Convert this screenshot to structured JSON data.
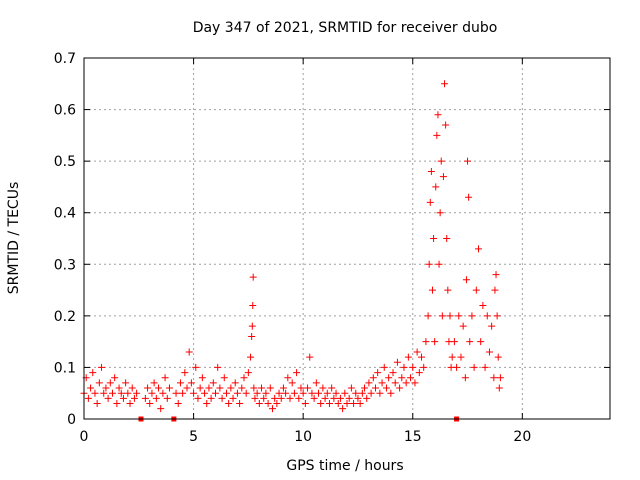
{
  "chart_data": {
    "type": "scatter",
    "title": "Day 347 of 2021, SRMTID for receiver dubo",
    "xlabel": "GPS time / hours",
    "ylabel": "SRMTID / TECUs",
    "xlim": [
      0,
      24
    ],
    "ylim": [
      0,
      0.7
    ],
    "x_ticks": [
      0,
      5,
      10,
      15,
      20
    ],
    "x_tick_labels": [
      "0",
      "5",
      "10",
      "15",
      "20"
    ],
    "y_ticks": [
      0,
      0.1,
      0.2,
      0.3,
      0.4,
      0.5,
      0.6,
      0.7
    ],
    "y_tick_labels": [
      "0",
      "0.1",
      "0.2",
      "0.3",
      "0.4",
      "0.5",
      "0.6",
      "0.7"
    ],
    "grid": true,
    "marker": "+",
    "color": "#ff0000",
    "gap_markers_x": [
      2.6,
      4.1,
      17.0
    ],
    "series": [
      {
        "name": "SRMTID",
        "points": [
          [
            0.0,
            0.05
          ],
          [
            0.1,
            0.08
          ],
          [
            0.2,
            0.04
          ],
          [
            0.3,
            0.06
          ],
          [
            0.4,
            0.09
          ],
          [
            0.5,
            0.05
          ],
          [
            0.6,
            0.03
          ],
          [
            0.7,
            0.07
          ],
          [
            0.8,
            0.1
          ],
          [
            0.9,
            0.05
          ],
          [
            1.0,
            0.06
          ],
          [
            1.1,
            0.04
          ],
          [
            1.2,
            0.07
          ],
          [
            1.3,
            0.05
          ],
          [
            1.4,
            0.08
          ],
          [
            1.5,
            0.03
          ],
          [
            1.6,
            0.06
          ],
          [
            1.7,
            0.05
          ],
          [
            1.8,
            0.04
          ],
          [
            1.9,
            0.07
          ],
          [
            2.0,
            0.05
          ],
          [
            2.1,
            0.03
          ],
          [
            2.2,
            0.06
          ],
          [
            2.3,
            0.04
          ],
          [
            2.4,
            0.05
          ],
          [
            2.8,
            0.04
          ],
          [
            2.9,
            0.06
          ],
          [
            3.0,
            0.03
          ],
          [
            3.1,
            0.05
          ],
          [
            3.2,
            0.07
          ],
          [
            3.3,
            0.04
          ],
          [
            3.4,
            0.06
          ],
          [
            3.5,
            0.02
          ],
          [
            3.6,
            0.05
          ],
          [
            3.7,
            0.08
          ],
          [
            3.8,
            0.04
          ],
          [
            3.9,
            0.06
          ],
          [
            4.2,
            0.05
          ],
          [
            4.3,
            0.03
          ],
          [
            4.4,
            0.07
          ],
          [
            4.5,
            0.05
          ],
          [
            4.6,
            0.09
          ],
          [
            4.7,
            0.06
          ],
          [
            4.8,
            0.13
          ],
          [
            4.9,
            0.07
          ],
          [
            5.0,
            0.05
          ],
          [
            5.1,
            0.1
          ],
          [
            5.2,
            0.04
          ],
          [
            5.3,
            0.06
          ],
          [
            5.4,
            0.08
          ],
          [
            5.5,
            0.05
          ],
          [
            5.6,
            0.03
          ],
          [
            5.7,
            0.06
          ],
          [
            5.8,
            0.04
          ],
          [
            5.9,
            0.07
          ],
          [
            6.0,
            0.05
          ],
          [
            6.1,
            0.1
          ],
          [
            6.2,
            0.06
          ],
          [
            6.3,
            0.04
          ],
          [
            6.4,
            0.08
          ],
          [
            6.5,
            0.05
          ],
          [
            6.6,
            0.03
          ],
          [
            6.7,
            0.06
          ],
          [
            6.8,
            0.04
          ],
          [
            6.9,
            0.07
          ],
          [
            7.0,
            0.05
          ],
          [
            7.1,
            0.03
          ],
          [
            7.2,
            0.06
          ],
          [
            7.3,
            0.08
          ],
          [
            7.4,
            0.05
          ],
          [
            7.5,
            0.09
          ],
          [
            7.6,
            0.12
          ],
          [
            7.65,
            0.16
          ],
          [
            7.68,
            0.18
          ],
          [
            7.7,
            0.22
          ],
          [
            7.72,
            0.275
          ],
          [
            7.75,
            0.06
          ],
          [
            7.8,
            0.04
          ],
          [
            7.9,
            0.05
          ],
          [
            8.0,
            0.03
          ],
          [
            8.1,
            0.06
          ],
          [
            8.2,
            0.04
          ],
          [
            8.3,
            0.05
          ],
          [
            8.4,
            0.03
          ],
          [
            8.5,
            0.06
          ],
          [
            8.6,
            0.02
          ],
          [
            8.7,
            0.04
          ],
          [
            8.8,
            0.03
          ],
          [
            8.9,
            0.05
          ],
          [
            9.0,
            0.04
          ],
          [
            9.1,
            0.06
          ],
          [
            9.2,
            0.05
          ],
          [
            9.3,
            0.08
          ],
          [
            9.4,
            0.04
          ],
          [
            9.5,
            0.07
          ],
          [
            9.6,
            0.05
          ],
          [
            9.7,
            0.09
          ],
          [
            9.8,
            0.04
          ],
          [
            9.9,
            0.06
          ],
          [
            10.0,
            0.05
          ],
          [
            10.1,
            0.03
          ],
          [
            10.2,
            0.06
          ],
          [
            10.3,
            0.12
          ],
          [
            10.4,
            0.05
          ],
          [
            10.5,
            0.04
          ],
          [
            10.6,
            0.07
          ],
          [
            10.7,
            0.05
          ],
          [
            10.8,
            0.03
          ],
          [
            10.9,
            0.06
          ],
          [
            11.0,
            0.04
          ],
          [
            11.1,
            0.05
          ],
          [
            11.2,
            0.03
          ],
          [
            11.3,
            0.06
          ],
          [
            11.4,
            0.04
          ],
          [
            11.5,
            0.05
          ],
          [
            11.6,
            0.03
          ],
          [
            11.7,
            0.04
          ],
          [
            11.8,
            0.02
          ],
          [
            11.9,
            0.05
          ],
          [
            12.0,
            0.03
          ],
          [
            12.1,
            0.04
          ],
          [
            12.2,
            0.06
          ],
          [
            12.3,
            0.03
          ],
          [
            12.4,
            0.05
          ],
          [
            12.5,
            0.04
          ],
          [
            12.6,
            0.03
          ],
          [
            12.7,
            0.05
          ],
          [
            12.8,
            0.06
          ],
          [
            12.9,
            0.04
          ],
          [
            13.0,
            0.07
          ],
          [
            13.1,
            0.05
          ],
          [
            13.2,
            0.08
          ],
          [
            13.3,
            0.06
          ],
          [
            13.4,
            0.09
          ],
          [
            13.5,
            0.05
          ],
          [
            13.6,
            0.07
          ],
          [
            13.7,
            0.1
          ],
          [
            13.8,
            0.06
          ],
          [
            13.9,
            0.08
          ],
          [
            14.0,
            0.05
          ],
          [
            14.1,
            0.09
          ],
          [
            14.2,
            0.07
          ],
          [
            14.3,
            0.11
          ],
          [
            14.4,
            0.06
          ],
          [
            14.5,
            0.08
          ],
          [
            14.6,
            0.1
          ],
          [
            14.7,
            0.07
          ],
          [
            14.8,
            0.12
          ],
          [
            14.9,
            0.08
          ],
          [
            15.0,
            0.1
          ],
          [
            15.1,
            0.07
          ],
          [
            15.2,
            0.13
          ],
          [
            15.3,
            0.09
          ],
          [
            15.4,
            0.12
          ],
          [
            15.5,
            0.1
          ],
          [
            15.6,
            0.15
          ],
          [
            15.7,
            0.2
          ],
          [
            15.75,
            0.3
          ],
          [
            15.8,
            0.42
          ],
          [
            15.85,
            0.48
          ],
          [
            15.9,
            0.25
          ],
          [
            15.95,
            0.35
          ],
          [
            16.0,
            0.15
          ],
          [
            16.05,
            0.45
          ],
          [
            16.1,
            0.55
          ],
          [
            16.15,
            0.59
          ],
          [
            16.2,
            0.3
          ],
          [
            16.25,
            0.4
          ],
          [
            16.3,
            0.5
          ],
          [
            16.35,
            0.2
          ],
          [
            16.4,
            0.47
          ],
          [
            16.45,
            0.65
          ],
          [
            16.5,
            0.57
          ],
          [
            16.55,
            0.35
          ],
          [
            16.6,
            0.25
          ],
          [
            16.65,
            0.15
          ],
          [
            16.7,
            0.2
          ],
          [
            16.75,
            0.1
          ],
          [
            16.8,
            0.12
          ],
          [
            16.9,
            0.15
          ],
          [
            17.0,
            0.1
          ],
          [
            17.1,
            0.2
          ],
          [
            17.2,
            0.12
          ],
          [
            17.3,
            0.18
          ],
          [
            17.4,
            0.08
          ],
          [
            17.45,
            0.27
          ],
          [
            17.5,
            0.5
          ],
          [
            17.55,
            0.43
          ],
          [
            17.6,
            0.15
          ],
          [
            17.7,
            0.2
          ],
          [
            17.8,
            0.1
          ],
          [
            17.9,
            0.25
          ],
          [
            18.0,
            0.33
          ],
          [
            18.1,
            0.15
          ],
          [
            18.2,
            0.22
          ],
          [
            18.3,
            0.1
          ],
          [
            18.4,
            0.2
          ],
          [
            18.5,
            0.13
          ],
          [
            18.6,
            0.18
          ],
          [
            18.7,
            0.08
          ],
          [
            18.75,
            0.25
          ],
          [
            18.8,
            0.28
          ],
          [
            18.85,
            0.2
          ],
          [
            18.9,
            0.12
          ],
          [
            18.95,
            0.06
          ],
          [
            19.0,
            0.08
          ]
        ]
      }
    ]
  }
}
